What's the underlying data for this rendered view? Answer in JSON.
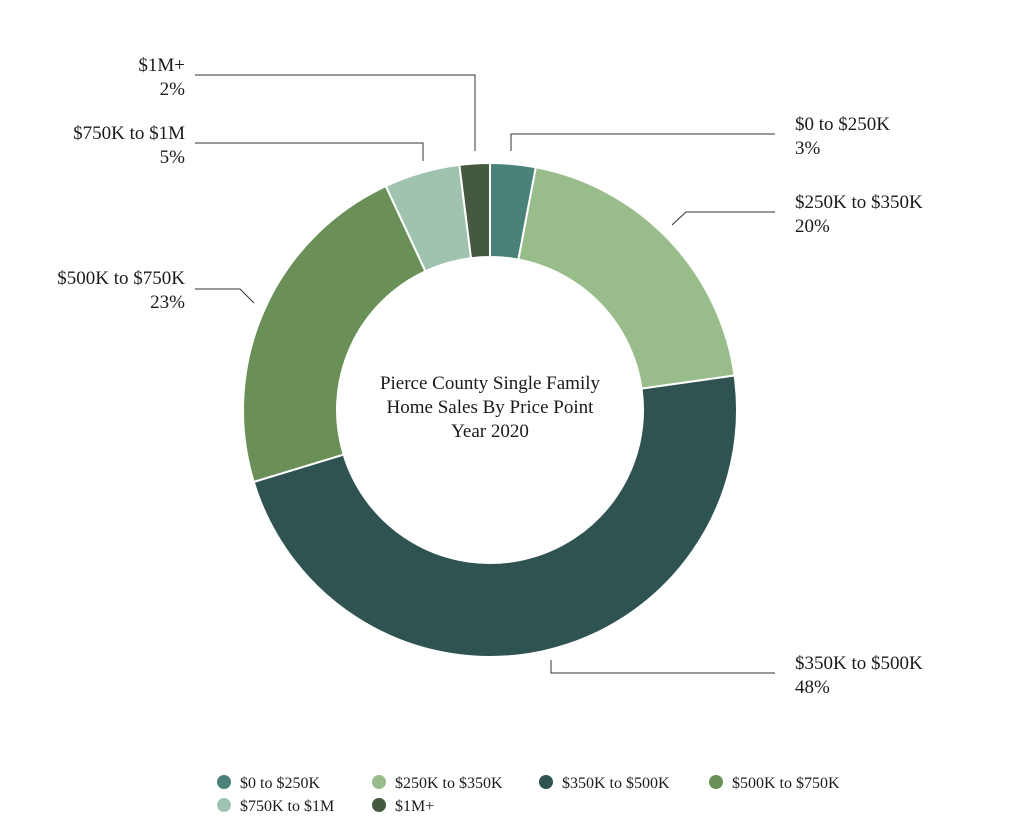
{
  "chart_data": {
    "type": "pie",
    "title_lines": [
      "Pierce County Single Family",
      "Home Sales By Price Point",
      "Year 2020"
    ],
    "slices": [
      {
        "label": "$0 to $250K",
        "value": 3,
        "value_label": "3%",
        "color": "#4a8178"
      },
      {
        "label": "$250K to $350K",
        "value": 20,
        "value_label": "20%",
        "color": "#98bd8a"
      },
      {
        "label": "$350K to $500K",
        "value": 48,
        "value_label": "48%",
        "color": "#2f5350"
      },
      {
        "label": "$500K to $750K",
        "value": 23,
        "value_label": "23%",
        "color": "#6a9057"
      },
      {
        "label": "$750K to $1M",
        "value": 5,
        "value_label": "5%",
        "color": "#9fc3af"
      },
      {
        "label": "$1M+",
        "value": 2,
        "value_label": "2%",
        "color": "#44593f"
      }
    ],
    "legend_position": "bottom"
  }
}
